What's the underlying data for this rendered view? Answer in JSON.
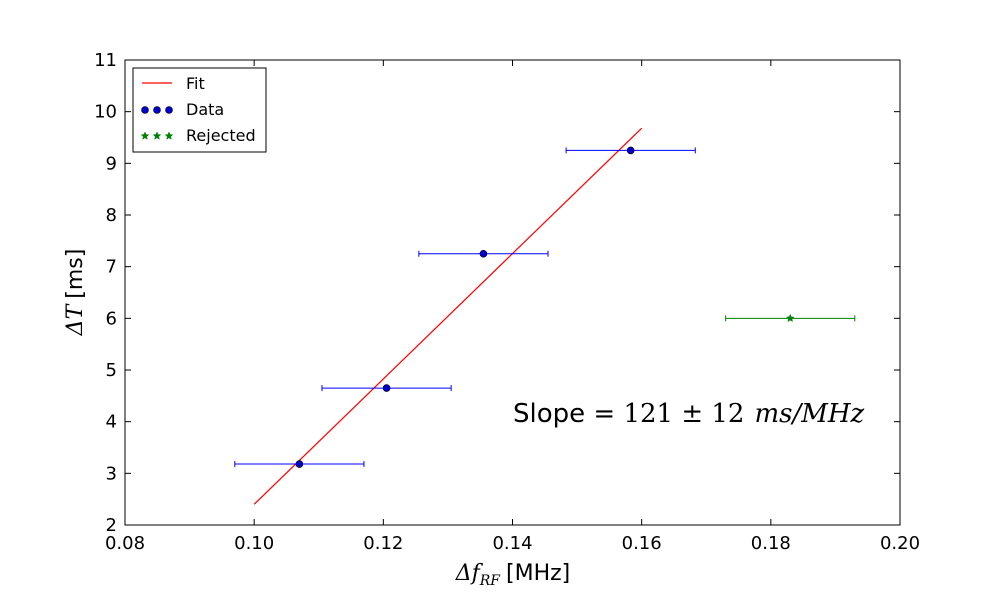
{
  "chart_data": {
    "type": "scatter",
    "xlabel": {
      "symbol": "Δf",
      "subscript": "RF",
      "unit": "[MHz]"
    },
    "ylabel": {
      "symbol": "ΔT",
      "unit": "[ms]"
    },
    "xlim": [
      0.08,
      0.2
    ],
    "ylim": [
      2,
      11
    ],
    "xticks": [
      "0.08",
      "0.10",
      "0.12",
      "0.14",
      "0.16",
      "0.18",
      "0.20"
    ],
    "xtick_values": [
      0.08,
      0.1,
      0.12,
      0.14,
      0.16,
      0.18,
      0.2
    ],
    "yticks": [
      "2",
      "3",
      "4",
      "5",
      "6",
      "7",
      "8",
      "9",
      "10",
      "11"
    ],
    "ytick_values": [
      2,
      3,
      4,
      5,
      6,
      7,
      8,
      9,
      10,
      11
    ],
    "legend_position": "top-left",
    "grid": false,
    "series": [
      {
        "name": "Fit",
        "kind": "line",
        "color": "#ff0000",
        "x": [
          0.1,
          0.16
        ],
        "y": [
          2.4,
          9.68
        ]
      },
      {
        "name": "Data",
        "kind": "points",
        "marker": "circle",
        "color": "#0000cc",
        "error_color": "#0000ff",
        "x": [
          0.107,
          0.1205,
          0.1355,
          0.1583
        ],
        "y": [
          3.18,
          4.65,
          7.25,
          9.25
        ],
        "x_err": [
          0.01,
          0.01,
          0.01,
          0.01
        ]
      },
      {
        "name": "Rejected",
        "kind": "points",
        "marker": "star",
        "color": "#008000",
        "error_color": "#008000",
        "x": [
          0.183
        ],
        "y": [
          6.0
        ],
        "x_err": [
          0.01
        ]
      }
    ],
    "annotation": {
      "prefix": "Slope = ",
      "math": "121 ± 12",
      "unit": "ms/MHz"
    }
  }
}
